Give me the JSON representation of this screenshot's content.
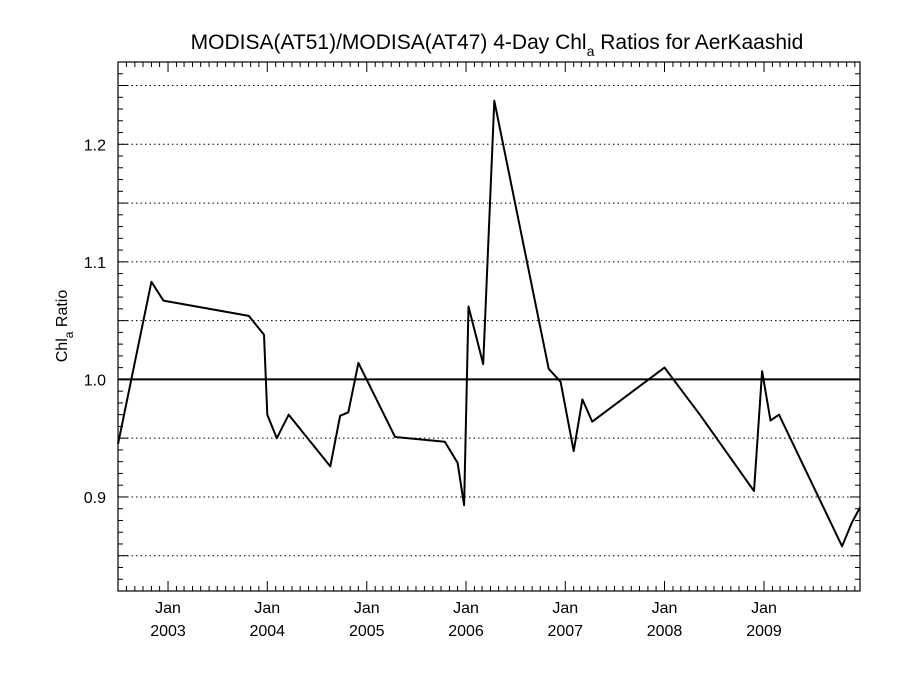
{
  "chart_data": {
    "type": "line",
    "title": {
      "main": "MODISA(AT51)/MODISA(AT47) 4-Day Chl",
      "sub": "a",
      "rest": " Ratios for AerKaashid"
    },
    "ylabel": {
      "main": "Chl",
      "sub": "a",
      "rest": " Ratio"
    },
    "xlim": [
      "2002-07-01",
      "2009-12-20"
    ],
    "ylim": [
      0.82,
      1.27
    ],
    "grid": "horizontal-dotted",
    "reference_line": 1.0,
    "x_ticks": [
      {
        "date": "2003-01-01",
        "label": "Jan",
        "year": "2003"
      },
      {
        "date": "2004-01-01",
        "label": "Jan",
        "year": "2004"
      },
      {
        "date": "2005-01-01",
        "label": "Jan",
        "year": "2005"
      },
      {
        "date": "2006-01-01",
        "label": "Jan",
        "year": "2006"
      },
      {
        "date": "2007-01-01",
        "label": "Jan",
        "year": "2007"
      },
      {
        "date": "2008-01-01",
        "label": "Jan",
        "year": "2008"
      },
      {
        "date": "2009-01-01",
        "label": "Jan",
        "year": "2009"
      }
    ],
    "y_ticks": [
      {
        "value": 0.9,
        "label": "0.9"
      },
      {
        "value": 1.0,
        "label": "1.0"
      },
      {
        "value": 1.1,
        "label": "1.1"
      },
      {
        "value": 1.2,
        "label": "1.2"
      }
    ],
    "y_gridlines": [
      0.85,
      0.9,
      0.95,
      1.0,
      1.05,
      1.1,
      1.15,
      1.2,
      1.25
    ],
    "series": [
      {
        "color": "#000000",
        "points": [
          {
            "x": "2002-07-01",
            "y": 0.945
          },
          {
            "x": "2002-11-01",
            "y": 1.083
          },
          {
            "x": "2002-12-15",
            "y": 1.067
          },
          {
            "x": "2003-10-25",
            "y": 1.054
          },
          {
            "x": "2003-12-20",
            "y": 1.038
          },
          {
            "x": "2004-01-01",
            "y": 0.97
          },
          {
            "x": "2004-02-05",
            "y": 0.95
          },
          {
            "x": "2004-03-20",
            "y": 0.97
          },
          {
            "x": "2004-08-20",
            "y": 0.926
          },
          {
            "x": "2004-09-25",
            "y": 0.969
          },
          {
            "x": "2004-10-25",
            "y": 0.972
          },
          {
            "x": "2004-12-01",
            "y": 1.014
          },
          {
            "x": "2005-04-15",
            "y": 0.951
          },
          {
            "x": "2005-10-15",
            "y": 0.947
          },
          {
            "x": "2005-12-01",
            "y": 0.929
          },
          {
            "x": "2005-12-25",
            "y": 0.893
          },
          {
            "x": "2006-01-10",
            "y": 1.062
          },
          {
            "x": "2006-03-05",
            "y": 1.013
          },
          {
            "x": "2006-04-15",
            "y": 1.237
          },
          {
            "x": "2006-11-01",
            "y": 1.009
          },
          {
            "x": "2006-12-15",
            "y": 0.998
          },
          {
            "x": "2007-02-01",
            "y": 0.939
          },
          {
            "x": "2007-03-05",
            "y": 0.983
          },
          {
            "x": "2007-04-10",
            "y": 0.964
          },
          {
            "x": "2008-01-01",
            "y": 1.01
          },
          {
            "x": "2008-05-10",
            "y": 0.97
          },
          {
            "x": "2008-11-25",
            "y": 0.905
          },
          {
            "x": "2008-12-25",
            "y": 1.007
          },
          {
            "x": "2009-01-25",
            "y": 0.965
          },
          {
            "x": "2009-02-25",
            "y": 0.97
          },
          {
            "x": "2009-10-15",
            "y": 0.858
          },
          {
            "x": "2009-11-20",
            "y": 0.878
          },
          {
            "x": "2009-12-20",
            "y": 0.891
          }
        ]
      }
    ]
  }
}
